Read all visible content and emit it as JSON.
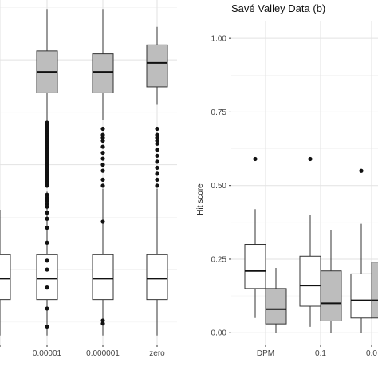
{
  "chart_data": [
    {
      "type": "box",
      "title": "",
      "xlabel": "",
      "ylabel": "",
      "categories": [
        "",
        "0.00001",
        "0.000001",
        "zero"
      ],
      "series": [
        {
          "fill": "#bdbdbd",
          "boxes": [
            {
              "category": "0.00001",
              "whisker_low": 0.68,
              "q1": 0.84,
              "median": 0.91,
              "q3": 0.98,
              "whisker_high": 1.12,
              "outliers": []
            },
            {
              "category": "0.000001",
              "whisker_low": 0.75,
              "q1": 0.84,
              "median": 0.91,
              "q3": 0.97,
              "whisker_high": 1.12,
              "outliers": []
            },
            {
              "category": "zero",
              "whisker_low": 0.8,
              "q1": 0.86,
              "median": 0.94,
              "q3": 1.0,
              "whisker_high": 1.06,
              "outliers": []
            }
          ]
        },
        {
          "fill": "#ffffff",
          "boxes": [
            {
              "category": "",
              "whisker_low": 0.03,
              "q1": 0.15,
              "median": 0.22,
              "q3": 0.3,
              "whisker_high": 0.45,
              "outliers": []
            },
            {
              "category": "0.00001",
              "whisker_low": 0.03,
              "q1": 0.15,
              "median": 0.22,
              "q3": 0.3,
              "whisker_high": 0.51,
              "outliers": [
                0.53,
                0.535,
                0.54,
                0.545,
                0.55,
                0.555,
                0.56,
                0.565,
                0.57,
                0.575,
                0.58,
                0.585,
                0.59,
                0.595,
                0.6,
                0.605,
                0.61,
                0.615,
                0.62,
                0.625,
                0.63,
                0.635,
                0.64,
                0.645,
                0.65,
                0.655,
                0.66,
                0.665,
                0.67,
                0.675,
                0.68,
                0.685,
                0.69,
                0.695,
                0.7,
                0.705,
                0.71,
                0.715,
                0.72,
                0.725,
                0.73,
                0.735,
                0.74,
                0.5,
                0.49,
                0.48,
                0.47,
                0.46,
                0.44,
                0.42,
                0.39,
                0.34,
                0.28,
                0.25,
                0.19,
                0.12,
                0.06
              ]
            },
            {
              "category": "0.000001",
              "whisker_low": 0.03,
              "q1": 0.15,
              "median": 0.22,
              "q3": 0.3,
              "whisker_high": 0.52,
              "outliers": [
                0.53,
                0.55,
                0.58,
                0.6,
                0.62,
                0.64,
                0.66,
                0.68,
                0.69,
                0.7,
                0.72,
                0.41,
                0.08,
                0.07
              ]
            },
            {
              "category": "zero",
              "whisker_low": 0.03,
              "q1": 0.15,
              "median": 0.22,
              "q3": 0.3,
              "whisker_high": 0.52,
              "outliers": [
                0.53,
                0.55,
                0.57,
                0.59,
                0.61,
                0.63,
                0.65,
                0.67,
                0.68,
                0.69,
                0.7,
                0.72
              ]
            }
          ]
        }
      ]
    },
    {
      "type": "box",
      "title": "Savé Valley Data (b)",
      "xlabel": "",
      "ylabel": "Hit score",
      "ylim": [
        0,
        1
      ],
      "yticks": [
        "0.00",
        "0.25",
        "0.50",
        "0.75",
        "1.00"
      ],
      "categories": [
        "DPM",
        "0.1",
        "0.0"
      ],
      "series": [
        {
          "fill": "#ffffff",
          "boxes": [
            {
              "category": "DPM",
              "whisker_low": 0.05,
              "q1": 0.15,
              "median": 0.21,
              "q3": 0.3,
              "whisker_high": 0.42,
              "outliers": [
                0.59
              ]
            },
            {
              "category": "0.1",
              "whisker_low": 0.02,
              "q1": 0.09,
              "median": 0.16,
              "q3": 0.26,
              "whisker_high": 0.4,
              "outliers": [
                0.59
              ]
            },
            {
              "category": "0.0",
              "whisker_low": 0.0,
              "q1": 0.05,
              "median": 0.11,
              "q3": 0.2,
              "whisker_high": 0.37,
              "outliers": [
                0.55
              ]
            }
          ]
        },
        {
          "fill": "#bdbdbd",
          "boxes": [
            {
              "category": "DPM",
              "whisker_low": 0.0,
              "q1": 0.03,
              "median": 0.08,
              "q3": 0.15,
              "whisker_high": 0.22,
              "outliers": []
            },
            {
              "category": "0.1",
              "whisker_low": 0.0,
              "q1": 0.04,
              "median": 0.1,
              "q3": 0.21,
              "whisker_high": 0.35,
              "outliers": []
            },
            {
              "category": "0.0",
              "whisker_low": 0.0,
              "q1": 0.05,
              "median": 0.11,
              "q3": 0.24,
              "whisker_high": 0.41,
              "outliers": []
            }
          ]
        }
      ]
    }
  ]
}
